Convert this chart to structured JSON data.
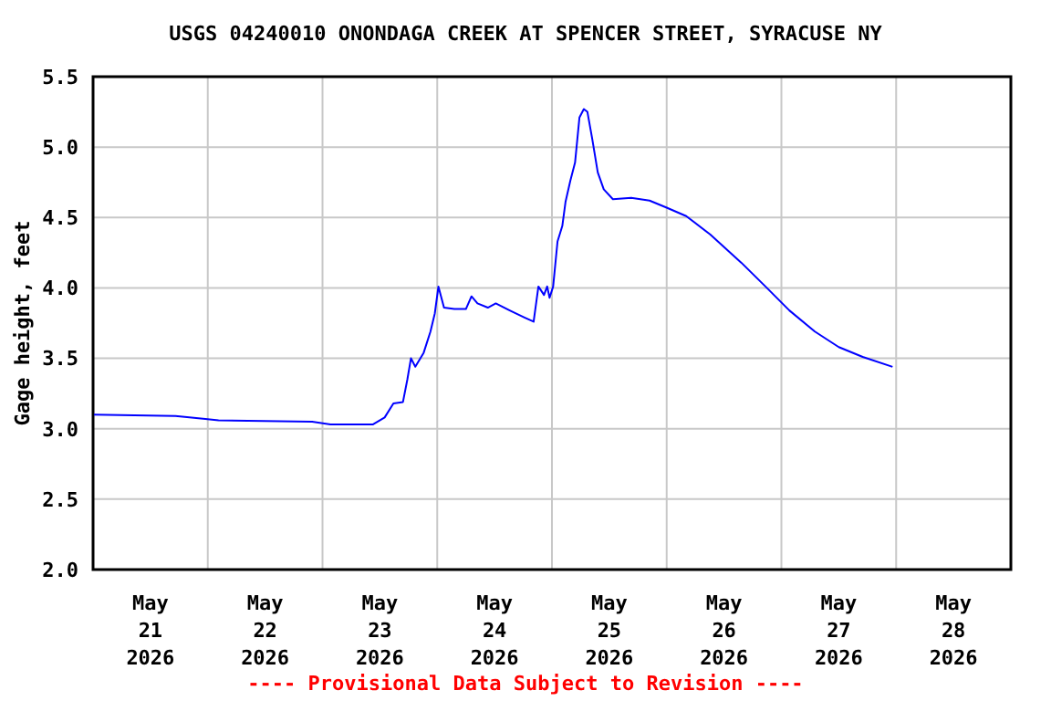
{
  "chart_data": {
    "type": "line",
    "title": "USGS 04240010 ONONDAGA CREEK AT SPENCER STREET, SYRACUSE NY",
    "ylabel": "Gage height, feet",
    "annotations": [
      "---- Provisional Data Subject to Revision ----"
    ],
    "x": [
      "2026-05-21T00:00",
      "2026-05-21T17:15",
      "2026-05-21T23:30",
      "2026-05-22T02:15",
      "2026-05-22T21:50",
      "2026-05-23T01:40",
      "2026-05-23T10:30",
      "2026-05-23T13:00",
      "2026-05-23T14:50",
      "2026-05-23T16:50",
      "2026-05-23T17:45",
      "2026-05-23T18:30",
      "2026-05-23T19:25",
      "2026-05-23T21:10",
      "2026-05-23T22:35",
      "2026-05-23T23:30",
      "2026-05-24T00:15",
      "2026-05-24T01:25",
      "2026-05-24T03:35",
      "2026-05-24T06:00",
      "2026-05-24T07:10",
      "2026-05-24T08:25",
      "2026-05-24T10:35",
      "2026-05-24T12:15",
      "2026-05-24T15:10",
      "2026-05-24T18:15",
      "2026-05-24T20:10",
      "2026-05-24T21:10",
      "2026-05-24T22:20",
      "2026-05-24T23:00",
      "2026-05-24T23:30",
      "2026-05-25T00:15",
      "2026-05-25T01:10",
      "2026-05-25T02:10",
      "2026-05-25T02:50",
      "2026-05-25T03:50",
      "2026-05-25T04:50",
      "2026-05-25T05:45",
      "2026-05-25T06:40",
      "2026-05-25T07:25",
      "2026-05-25T08:25",
      "2026-05-25T09:35",
      "2026-05-25T10:50",
      "2026-05-25T12:45",
      "2026-05-25T16:35",
      "2026-05-25T20:25",
      "2026-05-26T00:00",
      "2026-05-26T04:05",
      "2026-05-26T09:05",
      "2026-05-26T15:35",
      "2026-05-26T20:40",
      "2026-05-27T01:40",
      "2026-05-27T07:00",
      "2026-05-27T12:00",
      "2026-05-27T17:00",
      "2026-05-27T23:15"
    ],
    "series": [
      {
        "color": "#0000ff",
        "values": [
          3.1,
          3.09,
          3.07,
          3.06,
          3.05,
          3.03,
          3.03,
          3.08,
          3.18,
          3.19,
          3.35,
          3.5,
          3.44,
          3.54,
          3.69,
          3.82,
          4.01,
          3.86,
          3.85,
          3.85,
          3.94,
          3.89,
          3.86,
          3.89,
          3.84,
          3.79,
          3.76,
          4.01,
          3.95,
          4.01,
          3.93,
          4.01,
          4.33,
          4.44,
          4.61,
          4.76,
          4.89,
          5.21,
          5.27,
          5.25,
          5.06,
          4.82,
          4.7,
          4.63,
          4.64,
          4.62,
          4.57,
          4.51,
          4.38,
          4.18,
          4.01,
          3.84,
          3.69,
          3.58,
          3.51,
          3.44
        ]
      }
    ],
    "xlim": [
      "2026-05-21T00:00",
      "2026-05-29T00:00"
    ],
    "xticks": [
      {
        "value": "2026-05-21T12:00",
        "label": "May\n21\n2026"
      },
      {
        "value": "2026-05-22T00:00",
        "label": null
      },
      {
        "value": "2026-05-22T12:00",
        "label": "May\n22\n2026"
      },
      {
        "value": "2026-05-23T00:00",
        "label": null
      },
      {
        "value": "2026-05-23T12:00",
        "label": "May\n23\n2026"
      },
      {
        "value": "2026-05-24T00:00",
        "label": null
      },
      {
        "value": "2026-05-24T12:00",
        "label": "May\n24\n2026"
      },
      {
        "value": "2026-05-25T00:00",
        "label": null
      },
      {
        "value": "2026-05-25T12:00",
        "label": "May\n25\n2026"
      },
      {
        "value": "2026-05-26T00:00",
        "label": null
      },
      {
        "value": "2026-05-26T12:00",
        "label": "May\n26\n2026"
      },
      {
        "value": "2026-05-27T00:00",
        "label": null
      },
      {
        "value": "2026-05-27T12:00",
        "label": "May\n27\n2026"
      },
      {
        "value": "2026-05-28T00:00",
        "label": null
      },
      {
        "value": "2026-05-28T12:00",
        "label": "May\n28\n2026"
      }
    ],
    "ylim": [
      2.0,
      5.5
    ],
    "yticks": [
      {
        "value": 2.0,
        "label": "2.0"
      },
      {
        "value": 2.5,
        "label": "2.5"
      },
      {
        "value": 3.0,
        "label": "3.0"
      },
      {
        "value": 3.5,
        "label": "3.5"
      },
      {
        "value": 4.0,
        "label": "4.0"
      },
      {
        "value": 4.5,
        "label": "4.5"
      },
      {
        "value": 5.0,
        "label": "5.0"
      },
      {
        "value": 5.5,
        "label": "5.5"
      }
    ],
    "grid": true,
    "marker": "none",
    "line_style": "solid"
  }
}
